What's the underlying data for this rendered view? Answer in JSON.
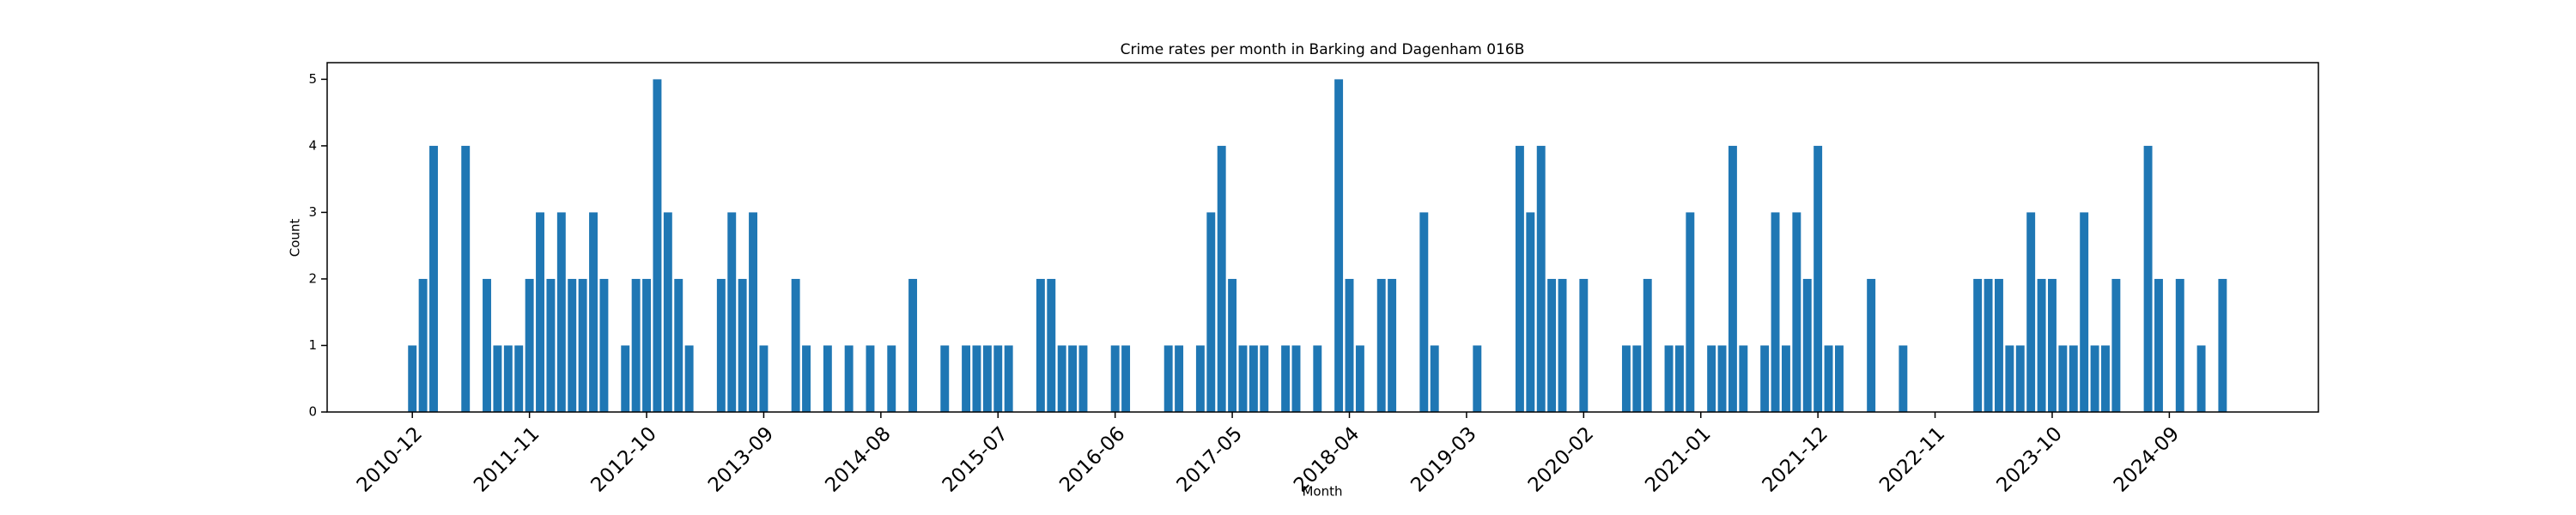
{
  "chart_data": {
    "type": "bar",
    "title": "Crime rates per month in Barking and Dagenham 016B",
    "x_label": "Month",
    "y_label": "Count",
    "color": "#1f77b4",
    "grid": false,
    "x": [
      "2010-12",
      "2011-01",
      "2011-02",
      "2011-05",
      "2011-07",
      "2011-08",
      "2011-09",
      "2011-10",
      "2011-11",
      "2011-12",
      "2012-01",
      "2012-02",
      "2012-03",
      "2012-04",
      "2012-05",
      "2012-06",
      "2012-08",
      "2012-09",
      "2012-10",
      "2012-11",
      "2012-12",
      "2013-01",
      "2013-02",
      "2013-05",
      "2013-06",
      "2013-07",
      "2013-08",
      "2013-09",
      "2013-12",
      "2014-01",
      "2014-03",
      "2014-05",
      "2014-07",
      "2014-09",
      "2014-11",
      "2015-02",
      "2015-04",
      "2015-05",
      "2015-06",
      "2015-07",
      "2015-08",
      "2015-11",
      "2015-12",
      "2016-01",
      "2016-02",
      "2016-03",
      "2016-06",
      "2016-07",
      "2016-11",
      "2016-12",
      "2017-02",
      "2017-03",
      "2017-04",
      "2017-05",
      "2017-06",
      "2017-07",
      "2017-08",
      "2017-10",
      "2017-11",
      "2018-01",
      "2018-03",
      "2018-04",
      "2018-05",
      "2018-07",
      "2018-08",
      "2018-11",
      "2018-12",
      "2019-04",
      "2019-08",
      "2019-09",
      "2019-10",
      "2019-11",
      "2019-12",
      "2020-02",
      "2020-06",
      "2020-07",
      "2020-08",
      "2020-10",
      "2020-11",
      "2020-12",
      "2021-02",
      "2021-03",
      "2021-04",
      "2021-05",
      "2021-07",
      "2021-08",
      "2021-09",
      "2021-10",
      "2021-11",
      "2021-12",
      "2022-01",
      "2022-02",
      "2022-05",
      "2022-08",
      "2023-03",
      "2023-04",
      "2023-05",
      "2023-06",
      "2023-07",
      "2023-08",
      "2023-09",
      "2023-10",
      "2023-11",
      "2023-12",
      "2024-01",
      "2024-02",
      "2024-03",
      "2024-04",
      "2024-07",
      "2024-08",
      "2024-10",
      "2024-12",
      "2025-02"
    ],
    "values": [
      1,
      2,
      4,
      4,
      2,
      1,
      1,
      1,
      2,
      3,
      2,
      3,
      2,
      2,
      3,
      2,
      1,
      2,
      2,
      5,
      3,
      2,
      1,
      2,
      3,
      2,
      3,
      1,
      2,
      1,
      1,
      1,
      1,
      1,
      2,
      1,
      1,
      1,
      1,
      1,
      1,
      2,
      2,
      1,
      1,
      1,
      1,
      1,
      1,
      1,
      1,
      3,
      4,
      2,
      1,
      1,
      1,
      1,
      1,
      1,
      5,
      2,
      1,
      2,
      2,
      3,
      1,
      1,
      4,
      3,
      4,
      2,
      2,
      2,
      1,
      1,
      2,
      1,
      1,
      3,
      1,
      1,
      4,
      1,
      1,
      3,
      1,
      3,
      2,
      4,
      1,
      1,
      2,
      1,
      2,
      2,
      2,
      1,
      1,
      3,
      2,
      2,
      1,
      1,
      3,
      1,
      1,
      2,
      4,
      2,
      2,
      1,
      2
    ],
    "xlim": [
      "2010-04",
      "2025-11"
    ],
    "xticks": [
      "2010-12",
      "2011-11",
      "2012-10",
      "2013-09",
      "2014-08",
      "2015-07",
      "2016-06",
      "2017-05",
      "2018-04",
      "2019-03",
      "2020-02",
      "2021-01",
      "2021-12",
      "2022-11",
      "2023-10",
      "2024-09"
    ],
    "ylim": [
      0,
      5.25
    ],
    "yticks": [
      0,
      1,
      2,
      3,
      4,
      5
    ]
  }
}
